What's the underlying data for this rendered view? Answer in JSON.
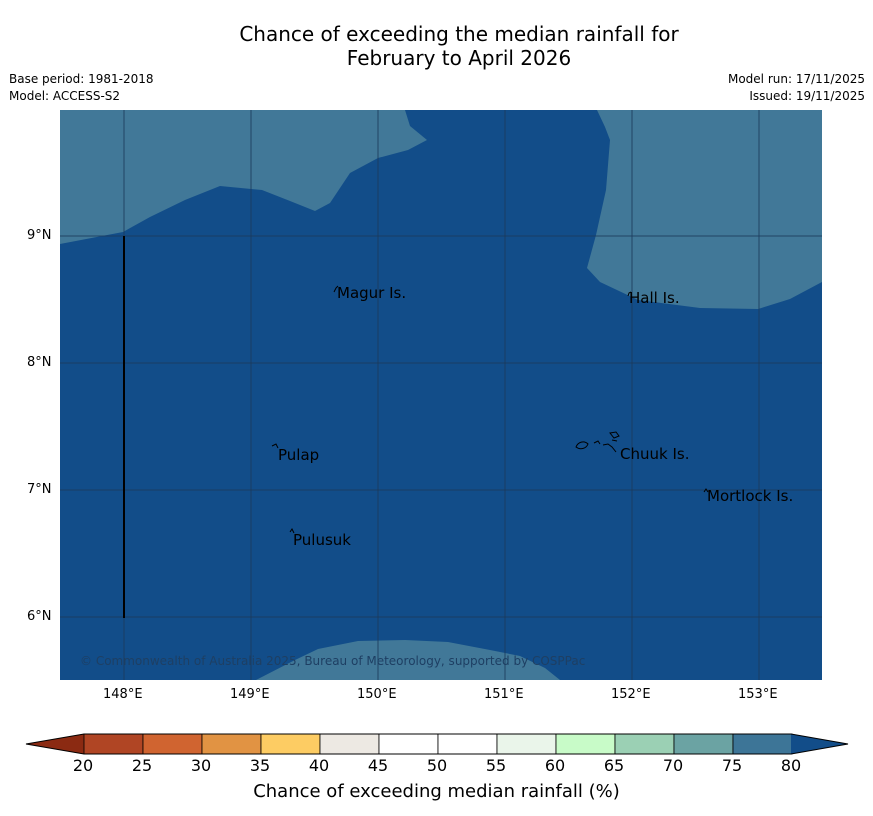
{
  "title": {
    "line1": "Chance of exceeding the median rainfall for",
    "line2": "February to April 2026"
  },
  "meta": {
    "base_period": "Base period: 1981-2018",
    "model": "Model: ACCESS-S2",
    "model_run": "Model run: 17/11/2025",
    "issued": "Issued: 19/11/2025"
  },
  "map": {
    "lat_labels": [
      "9°N",
      "8°N",
      "7°N",
      "6°N"
    ],
    "lon_labels": [
      "148°E",
      "149°E",
      "150°E",
      "151°E",
      "152°E",
      "153°E"
    ],
    "places": [
      "Magur Is.",
      "Hall Is.",
      "Pulap",
      "Chuuk Is.",
      "Mortlock Is.",
      "Pulusuk"
    ],
    "copyright": "© Commonwealth of Australia 2025, Bureau of Meteorology, supported by COSPPac",
    "colors": {
      "dark_blue": "#124d89",
      "mid_blue": "#417898",
      "grid": "#1c3b5c"
    }
  },
  "colorbar": {
    "title": "Chance of exceeding median rainfall (%)",
    "ticks": [
      "20",
      "25",
      "30",
      "35",
      "40",
      "45",
      "50",
      "55",
      "60",
      "65",
      "70",
      "75",
      "80"
    ],
    "colors": [
      "#8b2a12",
      "#b04524",
      "#d06430",
      "#e19343",
      "#fdcc63",
      "#ede9e3",
      "#ffffff",
      "#ffffff",
      "#eaf5ea",
      "#c8fbc8",
      "#9bd0b4",
      "#6ba3a3",
      "#3d7597",
      "#124d89"
    ]
  }
}
